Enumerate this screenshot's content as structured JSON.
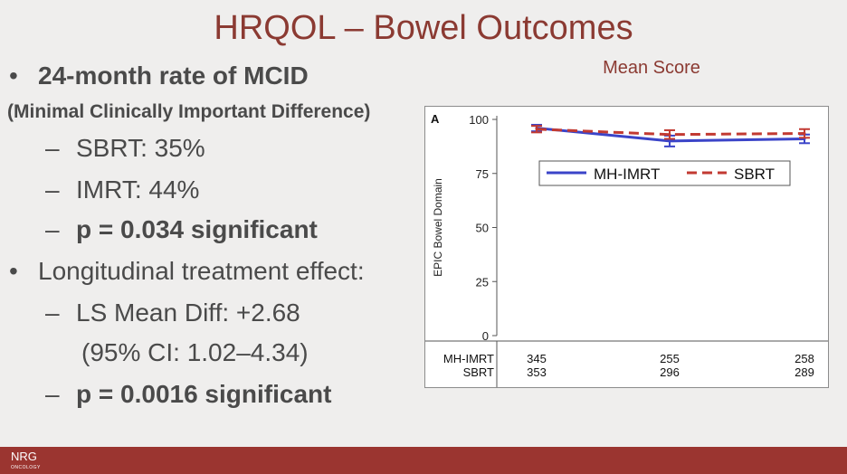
{
  "slide": {
    "title": "HRQOL – Bowel Outcomes",
    "bullets": {
      "b1": "24-month rate of MCID",
      "b1_sub": "(Minimal Clinically Important Difference)",
      "b1_items": [
        "SBRT: 35%",
        "IMRT: 44%",
        "p = 0.034 significant"
      ],
      "b2": "Longitudinal treatment effect:",
      "b2_items": [
        "LS Mean Diff: +2.68",
        "(95% CI: 1.02–4.34)",
        "p = 0.0016 significant"
      ],
      "bullet_char": "•",
      "dash_char": "–"
    },
    "mean_score_label": "Mean Score",
    "footer_logo": "NRG",
    "footer_logo_sub": "ONCOLOGY"
  },
  "colors": {
    "accent": "#8b3a32",
    "mh_imrt": "#3b44c8",
    "sbrt": "#c23a32"
  },
  "chart_data": {
    "type": "line",
    "panel_label": "A",
    "ylabel": "EPIC Bowel Domain",
    "ylim": [
      0,
      100
    ],
    "yticks": [
      0,
      25,
      50,
      75,
      100
    ],
    "x": [
      0,
      1,
      2
    ],
    "series": [
      {
        "name": "MH-IMRT",
        "values": [
          96,
          90,
          91
        ],
        "err": [
          1.5,
          2.5,
          2
        ],
        "style": "solid"
      },
      {
        "name": "SBRT",
        "values": [
          95.5,
          93,
          93.5
        ],
        "err": [
          1.5,
          2,
          2
        ],
        "style": "dashed"
      }
    ],
    "legend": "top",
    "risk_table": {
      "rows": [
        {
          "label": "MH-IMRT",
          "values": [
            "345",
            "255",
            "258"
          ]
        },
        {
          "label": "SBRT",
          "values": [
            "353",
            "296",
            "289"
          ]
        }
      ]
    }
  }
}
